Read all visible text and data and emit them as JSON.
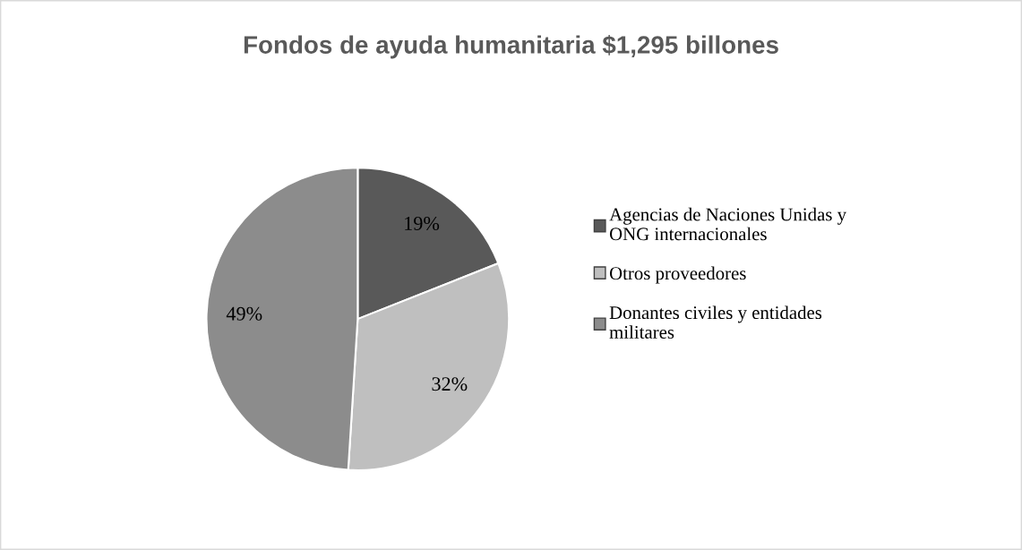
{
  "chart_data": {
    "type": "pie",
    "title": "Fondos de ayuda humanitaria $1,295 billones",
    "categories": [
      "Agencias de Naciones Unidas y ONG internacionales",
      "Otros proveedores",
      "Donantes civiles y entidades militares"
    ],
    "values": [
      19,
      32,
      49
    ],
    "colors": [
      "#595959",
      "#bfbfbf",
      "#8c8c8c"
    ],
    "value_labels": [
      "19%",
      "32%",
      "49%"
    ],
    "legend": "right"
  }
}
